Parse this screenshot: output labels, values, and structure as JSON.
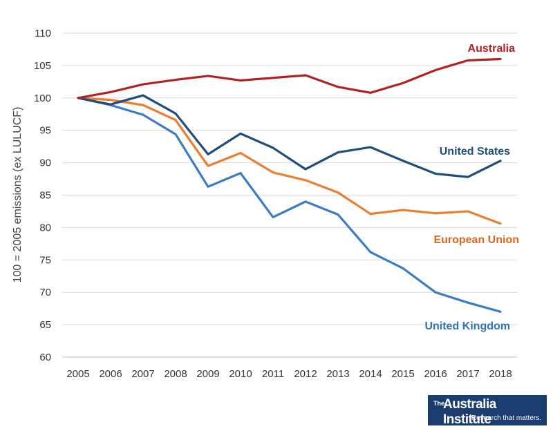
{
  "chart_data": {
    "type": "line",
    "title": "",
    "xlabel": "",
    "ylabel": "100 = 2005 emissions (ex LULUCF)",
    "ylim": [
      60,
      110
    ],
    "yticks": [
      60,
      65,
      70,
      75,
      80,
      85,
      90,
      95,
      100,
      105,
      110
    ],
    "x": [
      "2005",
      "2006",
      "2007",
      "2008",
      "2009",
      "2010",
      "2011",
      "2012",
      "2013",
      "2014",
      "2015",
      "2016",
      "2017",
      "2018"
    ],
    "grid": true,
    "series": [
      {
        "name": "Australia",
        "color": "#b22222",
        "labelColor": "#b22222",
        "values": [
          100,
          100.9,
          102.1,
          102.8,
          103.4,
          102.7,
          103.1,
          103.5,
          101.7,
          100.8,
          102.3,
          104.3,
          105.8,
          106.0
        ]
      },
      {
        "name": "United States",
        "color": "#1f4e79",
        "labelColor": "#1f4e79",
        "values": [
          100,
          99.0,
          100.4,
          97.6,
          91.3,
          94.5,
          92.3,
          89.0,
          91.6,
          92.4,
          90.3,
          88.3,
          87.8,
          90.3
        ]
      },
      {
        "name": "European Union",
        "color": "#ed7d31",
        "labelColor": "#d9661f",
        "values": [
          100,
          99.7,
          98.9,
          96.6,
          89.5,
          91.5,
          88.5,
          87.3,
          85.4,
          82.1,
          82.7,
          82.2,
          82.5,
          80.6
        ]
      },
      {
        "name": "United Kingdom",
        "color": "#3b7dc4",
        "labelColor": "#2e75b6",
        "values": [
          100,
          98.9,
          97.4,
          94.4,
          86.3,
          88.4,
          81.6,
          84.0,
          82.0,
          76.2,
          73.7,
          70.0,
          68.4,
          67.0
        ]
      }
    ]
  },
  "logo": {
    "the": "The",
    "main": "Australia Institute",
    "tagline": "Research that matters."
  }
}
